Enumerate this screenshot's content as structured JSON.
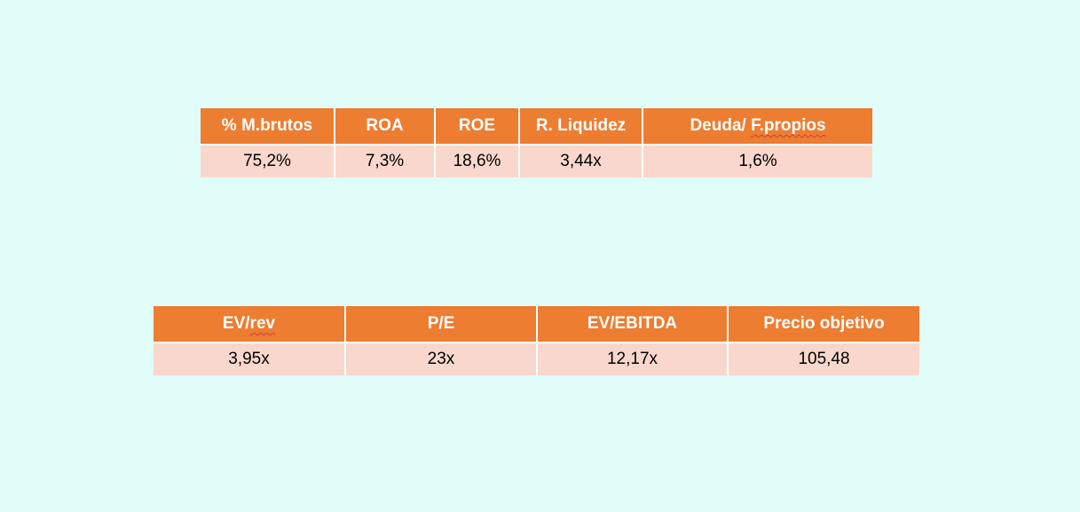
{
  "profitability_table": {
    "headers": [
      "% M.brutos",
      "ROA",
      "ROE",
      "R. Liquidez",
      "Deuda/ F.propios"
    ],
    "values": [
      "75,2%",
      "7,3%",
      "18,6%",
      "3,44x",
      "1,6%"
    ]
  },
  "valuation_table": {
    "headers": [
      "EV/rev",
      "P/E",
      "EV/EBITDA",
      "Precio objetivo"
    ],
    "values": [
      "3,95x",
      "23x",
      "12,17x",
      "105,48"
    ]
  },
  "colors": {
    "background": "#e1fdf9",
    "header_fill": "#ed7d31",
    "cell_fill": "#f9d7cc"
  }
}
